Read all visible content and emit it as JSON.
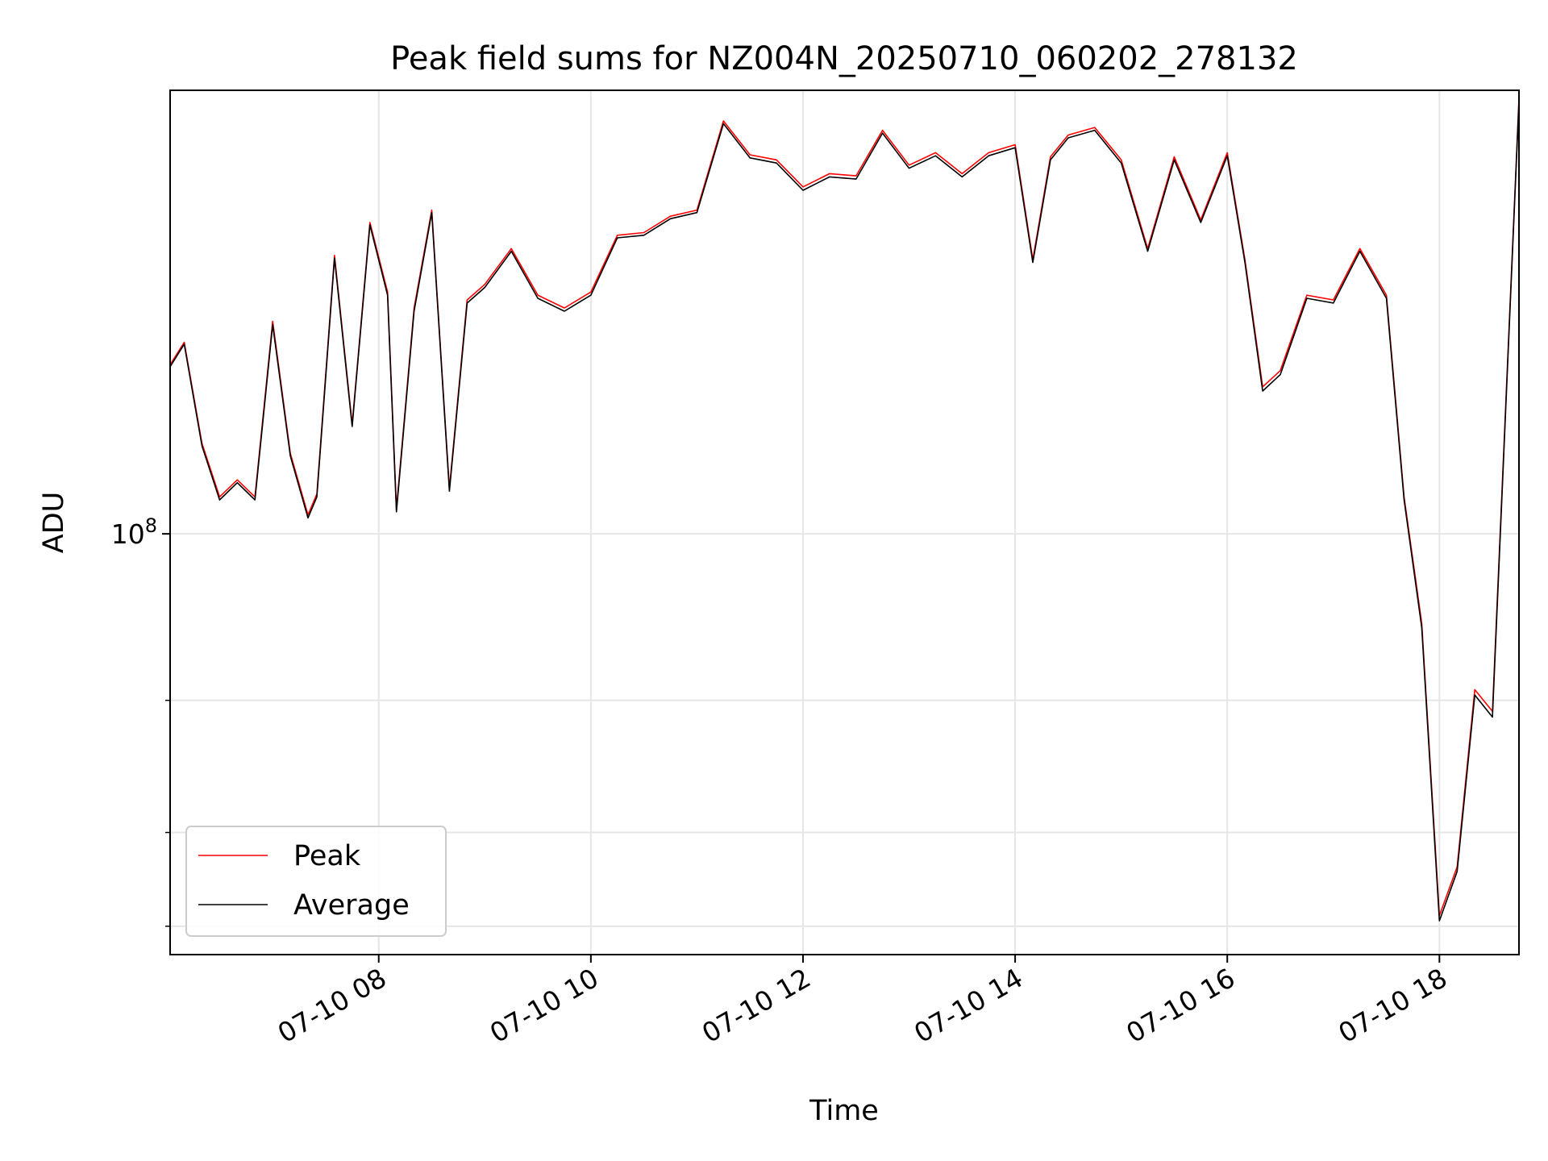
{
  "chart_data": {
    "type": "line",
    "title": "Peak field sums for NZ004N_20250710_060202_278132",
    "xlabel": "Time",
    "ylabel": "ADU",
    "yscale": "log",
    "grid": true,
    "legend_position": "lower-left",
    "xlim": [
      "2025-07-10 06:02",
      "2025-07-10 18:45"
    ],
    "ylim": [
      27500000,
      390000000
    ],
    "x_tick_labels": [
      "07-10 08",
      "07-10 10",
      "07-10 12",
      "07-10 14",
      "07-10 16",
      "07-10 18"
    ],
    "x_ticks": [
      "2025-07-10 08:00",
      "2025-07-10 10:00",
      "2025-07-10 12:00",
      "2025-07-10 14:00",
      "2025-07-10 16:00",
      "2025-07-10 18:00"
    ],
    "y_major_ticks": [
      {
        "value": 100000000,
        "label_base": "10",
        "label_exp": "8"
      }
    ],
    "y_minor_ticks": [
      30000000,
      40000000,
      60000000
    ],
    "colors": {
      "peak": "#ff0000",
      "average": "#000000",
      "grid": "#e6e6e6"
    },
    "series": [
      {
        "name": "Peak",
        "color": "#ff0000"
      },
      {
        "name": "Average",
        "color": "#000000"
      }
    ],
    "x": [
      "06:02",
      "06:10",
      "06:20",
      "06:30",
      "06:40",
      "06:50",
      "07:00",
      "07:10",
      "07:20",
      "07:25",
      "07:35",
      "07:45",
      "07:55",
      "08:05",
      "08:10",
      "08:20",
      "08:30",
      "08:40",
      "08:50",
      "09:00",
      "09:15",
      "09:30",
      "09:45",
      "10:00",
      "10:15",
      "10:30",
      "10:45",
      "11:00",
      "11:15",
      "11:30",
      "11:45",
      "12:00",
      "12:15",
      "12:30",
      "12:45",
      "13:00",
      "13:15",
      "13:30",
      "13:45",
      "14:00",
      "14:10",
      "14:20",
      "14:30",
      "14:45",
      "15:00",
      "15:15",
      "15:30",
      "15:45",
      "16:00",
      "16:10",
      "16:20",
      "16:30",
      "16:45",
      "17:00",
      "17:15",
      "17:30",
      "17:40",
      "17:50",
      "18:00",
      "18:10",
      "18:20",
      "18:30",
      "18:45"
    ],
    "values": [
      [
        168000000,
        180000000,
        132000000,
        112000000,
        118000000,
        112000000,
        192000000,
        128000000,
        106000000,
        113000000,
        235000000,
        140000000,
        260000000,
        210000000,
        108000000,
        200000000,
        270000000,
        115000000,
        205000000,
        215000000,
        240000000,
        208000000,
        200000000,
        210000000,
        250000000,
        252000000,
        265000000,
        270000000,
        355000000,
        320000000,
        315000000,
        290000000,
        302000000,
        300000000,
        345000000,
        310000000,
        322000000,
        302000000,
        322000000,
        330000000,
        232000000,
        318000000,
        340000000,
        348000000,
        315000000,
        240000000,
        318000000,
        262000000,
        322000000,
        232000000,
        157000000,
        165000000,
        208000000,
        205000000,
        240000000,
        208000000,
        112000000,
        76000000,
        31000000,
        36000000,
        62000000,
        58000000,
        380000000
      ],
      [
        167000000,
        179000000,
        131000000,
        111000000,
        117000000,
        111000000,
        190000000,
        127000000,
        105000000,
        112000000,
        233000000,
        139000000,
        258000000,
        208000000,
        107000000,
        198000000,
        268000000,
        114000000,
        203000000,
        213000000,
        238000000,
        206000000,
        198000000,
        208000000,
        248000000,
        250000000,
        263000000,
        268000000,
        352000000,
        317000000,
        312000000,
        287000000,
        299000000,
        297000000,
        342000000,
        307000000,
        319000000,
        299000000,
        319000000,
        327000000,
        230000000,
        315000000,
        337000000,
        345000000,
        312000000,
        238000000,
        315000000,
        260000000,
        319000000,
        230000000,
        155000000,
        163000000,
        206000000,
        203000000,
        238000000,
        206000000,
        111000000,
        75000000,
        30500000,
        35500000,
        61000000,
        57000000,
        377000000
      ]
    ]
  }
}
